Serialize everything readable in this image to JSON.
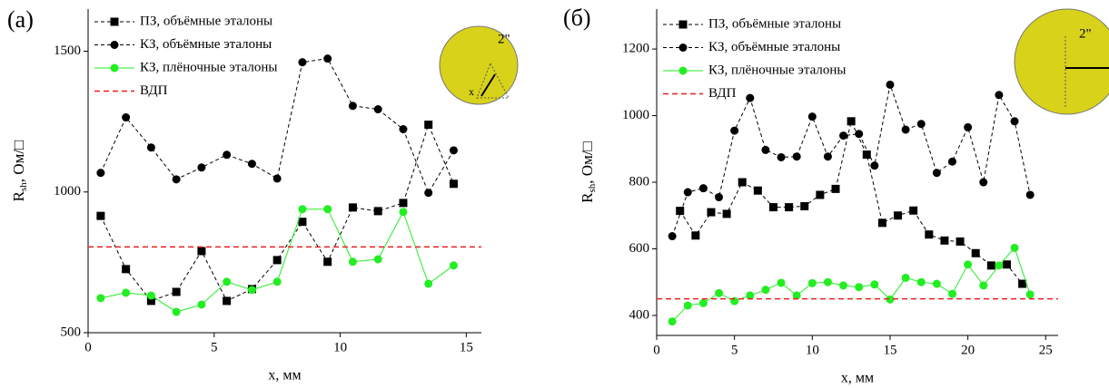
{
  "chart_data": [
    {
      "type": "line",
      "panel_label": "(а)",
      "xlabel": "x, мм",
      "ylabel": "R",
      "ylabel_sub": "sh",
      "ylabel_rest": ", Ом/□",
      "xlim": [
        0,
        15.6
      ],
      "ylim": [
        500,
        1650
      ],
      "xticks": [
        0,
        5,
        10,
        15
      ],
      "yticks": [
        500,
        1000,
        1500
      ],
      "inset_text": [
        "2\"",
        "x"
      ],
      "series": [
        {
          "name": "ПЗ, объёмные эталоны",
          "color": "#000000",
          "marker": "square",
          "dashed": true,
          "x": [
            0.5,
            1.5,
            2.5,
            3.5,
            4.5,
            5.5,
            6.5,
            7.5,
            8.5,
            9.5,
            10.5,
            11.5,
            12.5,
            13.5,
            14.5
          ],
          "values": [
            915,
            726,
            613,
            645,
            790,
            613,
            655,
            758,
            894,
            752,
            945,
            932,
            961,
            1239,
            1029
          ]
        },
        {
          "name": "КЗ, объёмные эталоны",
          "color": "#000000",
          "marker": "circle",
          "dashed": true,
          "x": [
            0.5,
            1.5,
            2.5,
            3.5,
            4.5,
            5.5,
            6.5,
            7.5,
            8.5,
            9.5,
            10.5,
            11.5,
            12.5,
            13.5,
            14.5
          ],
          "values": [
            1068,
            1265,
            1158,
            1045,
            1087,
            1132,
            1100,
            1048,
            1461,
            1474,
            1306,
            1294,
            1223,
            997,
            1148
          ]
        },
        {
          "name": "КЗ, плёночные эталоны",
          "color": "#22ee22",
          "marker": "circle",
          "dashed": false,
          "x": [
            0.5,
            1.5,
            2.5,
            3.5,
            4.5,
            5.5,
            6.5,
            7.5,
            8.5,
            9.5,
            10.5,
            11.5,
            12.5,
            13.5,
            14.5
          ],
          "values": [
            623,
            642,
            632,
            574,
            600,
            681,
            652,
            681,
            939,
            939,
            752,
            761,
            929,
            674,
            739
          ]
        },
        {
          "name": "ВДП",
          "color": "#e82020",
          "marker": "none",
          "dashed": true,
          "hline": true,
          "values": [
            805
          ]
        }
      ]
    },
    {
      "type": "line",
      "panel_label": "(б)",
      "xlabel": "x, мм",
      "ylabel": "R",
      "ylabel_sub": "sh",
      "ylabel_rest": ", Ом/□",
      "xlim": [
        0,
        25.8
      ],
      "ylim": [
        340,
        1320
      ],
      "xticks": [
        0,
        5,
        10,
        15,
        20,
        25
      ],
      "yticks": [
        400,
        600,
        800,
        1000,
        1200
      ],
      "inset_text": [
        "2\""
      ],
      "series": [
        {
          "name": "ПЗ, объёмные эталоны",
          "color": "#000000",
          "marker": "square",
          "dashed": true,
          "x": [
            1.5,
            2.5,
            3.5,
            4.5,
            5.5,
            6.5,
            7.5,
            8.5,
            9.5,
            10.5,
            11.5,
            12.5,
            13.5,
            14.5,
            15.5,
            16.5,
            17.5,
            18.5,
            19.5,
            20.5,
            21.5,
            22.5,
            23.5
          ],
          "values": [
            714,
            640,
            710,
            705,
            800,
            775,
            725,
            725,
            728,
            762,
            780,
            983,
            883,
            678,
            700,
            715,
            643,
            625,
            622,
            587,
            550,
            553,
            495
          ]
        },
        {
          "name": "КЗ, объёмные эталоны",
          "color": "#000000",
          "marker": "circle",
          "dashed": true,
          "x": [
            1,
            2,
            3,
            4,
            5,
            6,
            7,
            8,
            9,
            10,
            11,
            12,
            13,
            14,
            15,
            16,
            17,
            18,
            19,
            20,
            21,
            22,
            23,
            24
          ],
          "values": [
            638,
            770,
            782,
            755,
            955,
            1053,
            897,
            875,
            877,
            997,
            877,
            940,
            945,
            850,
            1093,
            958,
            975,
            828,
            862,
            965,
            800,
            1062,
            983,
            762
          ]
        },
        {
          "name": "КЗ, плёночные эталоны",
          "color": "#22ee22",
          "marker": "circle",
          "dashed": false,
          "x": [
            1,
            2,
            3,
            4,
            5,
            6,
            7,
            8,
            9,
            10,
            11,
            12,
            13,
            14,
            15,
            16,
            17,
            18,
            19,
            20,
            21,
            22,
            23,
            24
          ],
          "values": [
            382,
            430,
            437,
            467,
            443,
            460,
            477,
            498,
            460,
            497,
            500,
            490,
            485,
            493,
            448,
            513,
            500,
            495,
            465,
            553,
            490,
            550,
            603,
            463
          ]
        },
        {
          "name": "ВДП",
          "color": "#e82020",
          "marker": "none",
          "dashed": true,
          "hline": true,
          "values": [
            450
          ]
        }
      ]
    }
  ]
}
